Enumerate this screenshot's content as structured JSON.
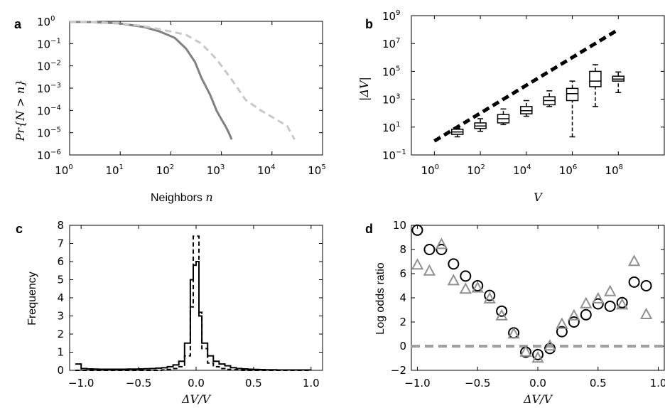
{
  "chart_data": [
    {
      "panel": "a",
      "type": "line",
      "xlabel_text": "Neighbors ",
      "xlabel_math": "n",
      "ylabel": "Pr{N > n}",
      "xscale": "log",
      "yscale": "log",
      "xlim": [
        1,
        100000
      ],
      "ylim": [
        1e-06,
        1
      ],
      "xtick_exp": [
        "0",
        "1",
        "2",
        "3",
        "4",
        "5"
      ],
      "ytick_exp": [
        "0",
        "-1",
        "-2",
        "-3",
        "-4",
        "-5",
        "-6"
      ],
      "tick_base": "10",
      "series": [
        {
          "style": "solid",
          "color": "#808080",
          "x": [
            1,
            3,
            10,
            30,
            60,
            120,
            200,
            300,
            400,
            600,
            800,
            1000,
            1200,
            1400,
            1600
          ],
          "y": [
            0.95,
            0.92,
            0.8,
            0.55,
            0.35,
            0.18,
            0.06,
            0.015,
            0.003,
            0.0005,
            0.0001,
            4e-05,
            2e-05,
            1e-05,
            5e-06
          ]
        },
        {
          "style": "dashed",
          "color": "#c8c8c8",
          "x": [
            1,
            3,
            10,
            30,
            100,
            200,
            400,
            800,
            1500,
            3000,
            6000,
            12000,
            20000,
            28000
          ],
          "y": [
            0.95,
            0.93,
            0.82,
            0.6,
            0.35,
            0.25,
            0.1,
            0.02,
            0.003,
            0.0003,
            0.0001,
            4e-05,
            2e-05,
            5e-06
          ]
        }
      ]
    },
    {
      "panel": "b",
      "type": "box",
      "xlabel": "V",
      "ylabel": "|ΔV|",
      "xscale": "log",
      "yscale": "log",
      "xlim": [
        0.1,
        10000000000
      ],
      "ylim": [
        0.1,
        1000000000
      ],
      "xtick_exp": [
        "0",
        "2",
        "4",
        "6",
        "8"
      ],
      "ytick_exp": [
        "9",
        "7",
        "5",
        "3",
        "1",
        "-1"
      ],
      "tick_base": "10",
      "reference_line": {
        "style": "dashed",
        "color": "#000000",
        "x": [
          1,
          100000000
        ],
        "y": [
          1,
          100000000
        ]
      },
      "boxes": [
        {
          "x": 10,
          "whislo": 2,
          "q1": 3,
          "med": 4.5,
          "q3": 7,
          "whishi": 8
        },
        {
          "x": 100,
          "whislo": 5,
          "q1": 8,
          "med": 12,
          "q3": 20,
          "whishi": 40
        },
        {
          "x": 1000,
          "whislo": 15,
          "q1": 20,
          "med": 40,
          "q3": 80,
          "whishi": 200
        },
        {
          "x": 10000,
          "whislo": 60,
          "q1": 90,
          "med": 150,
          "q3": 300,
          "whishi": 800
        },
        {
          "x": 100000,
          "whislo": 300,
          "q1": 400,
          "med": 800,
          "q3": 1500,
          "whishi": 4000
        },
        {
          "x": 1000000,
          "whislo": 2,
          "q1": 800,
          "med": 2500,
          "q3": 6000,
          "whishi": 20000
        },
        {
          "x": 10000000,
          "whislo": 300,
          "q1": 8000,
          "med": 20000,
          "q3": 100000,
          "whishi": 300000
        },
        {
          "x": 100000000,
          "whislo": 3000,
          "q1": 20000,
          "med": 28000,
          "q3": 45000,
          "whishi": 90000
        }
      ]
    },
    {
      "panel": "c",
      "type": "histogram",
      "xlabel": "ΔV/V",
      "ylabel": "Frequency",
      "xlim": [
        -1.1,
        1.1
      ],
      "ylim": [
        0,
        8
      ],
      "xticks": [
        "-1.0",
        "-0.5",
        "0.0",
        "0.5",
        "1.0"
      ],
      "yticks": [
        "0",
        "1",
        "2",
        "3",
        "4",
        "5",
        "6",
        "7",
        "8"
      ],
      "bin_edges": [
        -1.05,
        -1.0,
        -0.95,
        -0.9,
        -0.85,
        -0.8,
        -0.75,
        -0.7,
        -0.65,
        -0.6,
        -0.55,
        -0.5,
        -0.45,
        -0.4,
        -0.35,
        -0.3,
        -0.25,
        -0.2,
        -0.15,
        -0.1,
        -0.05,
        -0.025,
        0.0,
        0.025,
        0.05,
        0.1,
        0.15,
        0.2,
        0.25,
        0.3,
        0.35,
        0.4,
        0.45,
        0.5,
        0.55,
        0.6,
        0.65,
        0.7,
        0.75,
        0.8,
        0.85,
        0.9,
        0.95,
        1.0
      ],
      "series": [
        {
          "style": "solid",
          "color": "#000000",
          "counts": [
            0.35,
            0.1,
            0.08,
            0.07,
            0.06,
            0.06,
            0.06,
            0.06,
            0.06,
            0.07,
            0.07,
            0.08,
            0.09,
            0.1,
            0.12,
            0.14,
            0.2,
            0.3,
            0.5,
            1.5,
            5.0,
            5.8,
            6.0,
            3.0,
            1.5,
            0.8,
            0.5,
            0.35,
            0.25,
            0.15,
            0.1,
            0.08,
            0.06,
            0.05,
            0.04,
            0.03,
            0.03,
            0.02,
            0.02,
            0.02,
            0.02,
            0.02,
            0.02
          ]
        },
        {
          "style": "dashed",
          "color": "#000000",
          "counts": [
            0,
            0,
            0,
            0,
            0,
            0,
            0,
            0,
            0,
            0,
            0,
            0,
            0,
            0,
            0,
            0.02,
            0.05,
            0.1,
            0.2,
            0.8,
            3.5,
            7.4,
            7.4,
            3.2,
            1.2,
            0.4,
            0.2,
            0.1,
            0.05,
            0.03,
            0.02,
            0,
            0,
            0,
            0,
            0,
            0,
            0,
            0,
            0,
            0,
            0,
            0
          ]
        }
      ]
    },
    {
      "panel": "d",
      "type": "scatter",
      "xlabel": "ΔV/V",
      "ylabel": "Log odds ratio",
      "xlim": [
        -1.05,
        1.05
      ],
      "ylim": [
        -2,
        10
      ],
      "xticks": [
        "-1.0",
        "-0.5",
        "0.0",
        "0.5",
        "1.0"
      ],
      "yticks": [
        "-2",
        "0",
        "2",
        "4",
        "6",
        "8",
        "10"
      ],
      "reference_line": {
        "y": 0,
        "style": "dashed",
        "color": "#a0a0a0"
      },
      "series": [
        {
          "marker": "circle",
          "color": "#000000",
          "x": [
            -1.0,
            -0.9,
            -0.8,
            -0.7,
            -0.6,
            -0.5,
            -0.4,
            -0.3,
            -0.2,
            -0.1,
            0.0,
            0.1,
            0.2,
            0.3,
            0.4,
            0.5,
            0.6,
            0.7,
            0.8,
            0.9
          ],
          "y": [
            9.6,
            8.0,
            8.0,
            6.8,
            5.8,
            5.0,
            4.2,
            2.9,
            1.1,
            -0.5,
            -0.7,
            -0.2,
            1.2,
            2.0,
            2.6,
            3.5,
            3.3,
            3.6,
            5.3,
            5.0
          ]
        },
        {
          "marker": "triangle",
          "color": "#909090",
          "x": [
            -1.0,
            -0.9,
            -0.8,
            -0.7,
            -0.6,
            -0.5,
            -0.4,
            -0.3,
            -0.2,
            -0.1,
            0.0,
            0.1,
            0.2,
            0.3,
            0.4,
            0.5,
            0.6,
            0.7,
            0.8,
            0.9
          ],
          "y": [
            6.7,
            6.2,
            8.4,
            5.4,
            4.7,
            4.8,
            3.9,
            2.5,
            1.0,
            -0.5,
            -1.0,
            0.0,
            1.8,
            2.5,
            3.5,
            3.9,
            4.5,
            3.4,
            7.0,
            2.6
          ]
        }
      ]
    }
  ],
  "panel_labels": [
    "a",
    "b",
    "c",
    "d"
  ]
}
